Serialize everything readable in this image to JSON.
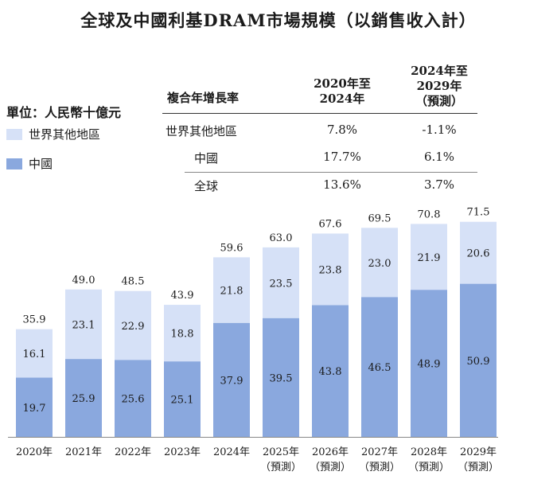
{
  "title": "全球及中國利基DRAM市場規模（以銷售收入計）",
  "unit_label": "單位：人民幣十億元",
  "legend": [
    {
      "label": "世界其他地區",
      "color": "#d6e1f7"
    },
    {
      "label": "中國",
      "color": "#8aa8de"
    }
  ],
  "cagr_table": {
    "header": [
      "複合年增長率",
      "2020年至\n2024年",
      "2024年至\n2029年\n（預測）"
    ],
    "rows": [
      {
        "label": "世界其他地區",
        "p1": "7.8%",
        "p2": "-1.1%"
      },
      {
        "label": "中國",
        "p1": "17.7%",
        "p2": "6.1%"
      },
      {
        "label": "全球",
        "p1": "13.6%",
        "p2": "3.7%"
      }
    ]
  },
  "chart_data": {
    "type": "bar",
    "stacked": true,
    "categories": [
      "2020年",
      "2021年",
      "2022年",
      "2023年",
      "2024年",
      "2025年",
      "2026年",
      "2027年",
      "2028年",
      "2029年"
    ],
    "category_notes": [
      "",
      "",
      "",
      "",
      "",
      "（預測）",
      "（預測）",
      "（預測）",
      "（預測）",
      "（預測）"
    ],
    "series": [
      {
        "name": "中國",
        "values": [
          19.7,
          25.9,
          25.6,
          25.1,
          37.9,
          39.5,
          43.8,
          46.5,
          48.9,
          50.9
        ]
      },
      {
        "name": "世界其他地區",
        "values": [
          16.1,
          23.1,
          22.9,
          18.8,
          21.8,
          23.5,
          23.8,
          23.0,
          21.9,
          20.6
        ]
      }
    ],
    "totals": [
      35.9,
      49.0,
      48.5,
      43.9,
      59.6,
      63.0,
      67.6,
      69.5,
      70.8,
      71.5
    ],
    "ylabel": "",
    "ylim": [
      0,
      75
    ]
  }
}
